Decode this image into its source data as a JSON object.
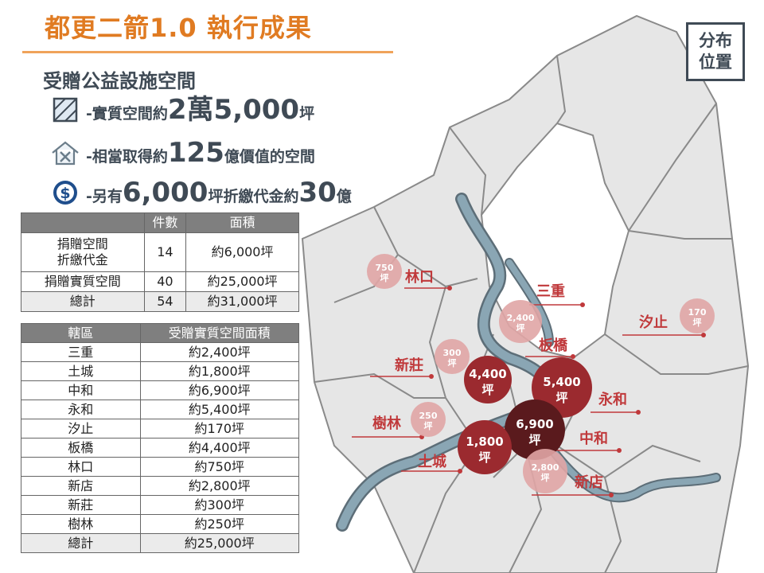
{
  "title": "都更二箭1.0 執行成果",
  "badge": {
    "line1": "分布",
    "line2": "位置"
  },
  "subtitle": "受贈公益設施空間",
  "bullets": [
    {
      "icon": "hatched-square-icon",
      "pre": "-實質空間約",
      "big1": "2萬5,000",
      "post": "坪"
    },
    {
      "icon": "house-tools-icon",
      "pre": "-相當取得約",
      "big1": "125",
      "post": "億價值的空間"
    },
    {
      "icon": "dollar-coin-icon",
      "pre": "-另有",
      "big1": "6,000",
      "mid": "坪折繳代金約",
      "big2": "30",
      "post": "億"
    }
  ],
  "summary_table": {
    "headers": [
      "",
      "件數",
      "面積"
    ],
    "rows": [
      {
        "label": "捐贈空間\n折繳代金",
        "count": "14",
        "area": "約6,000坪"
      },
      {
        "label": "捐贈實質空間",
        "count": "40",
        "area": "約25,000坪"
      },
      {
        "label": "總計",
        "count": "54",
        "area": "約31,000坪"
      }
    ]
  },
  "district_table": {
    "headers": [
      "轄區",
      "受贈實質空間面積"
    ],
    "rows": [
      {
        "district": "三重",
        "area": "約2,400坪"
      },
      {
        "district": "土城",
        "area": "約1,800坪"
      },
      {
        "district": "中和",
        "area": "約6,900坪"
      },
      {
        "district": "永和",
        "area": "約5,400坪"
      },
      {
        "district": "汐止",
        "area": "約170坪"
      },
      {
        "district": "板橋",
        "area": "約4,400坪"
      },
      {
        "district": "林口",
        "area": "約750坪"
      },
      {
        "district": "新店",
        "area": "約2,800坪"
      },
      {
        "district": "新莊",
        "area": "約300坪"
      },
      {
        "district": "樹林",
        "area": "約250坪"
      },
      {
        "district": "總計",
        "area": "約25,000坪"
      }
    ]
  },
  "map_markers": [
    {
      "district": "林口",
      "value": "750",
      "unit": "坪",
      "level": "light"
    },
    {
      "district": "三重",
      "value": "2,400",
      "unit": "坪",
      "level": "light"
    },
    {
      "district": "汐止",
      "value": "170",
      "unit": "坪",
      "level": "light"
    },
    {
      "district": "板橋",
      "value": "4,400",
      "unit": "坪",
      "level": "dark"
    },
    {
      "district": "新莊",
      "value": "300",
      "unit": "坪",
      "level": "light"
    },
    {
      "district": "永和",
      "value": "5,400",
      "unit": "坪",
      "level": "dark"
    },
    {
      "district": "樹林",
      "value": "250",
      "unit": "坪",
      "level": "light"
    },
    {
      "district": "中和",
      "value": "6,900",
      "unit": "坪",
      "level": "darkest"
    },
    {
      "district": "土城",
      "value": "1,800",
      "unit": "坪",
      "level": "dark"
    },
    {
      "district": "新店",
      "value": "2,800",
      "unit": "坪",
      "level": "light"
    }
  ],
  "colors": {
    "title": "#e07b22",
    "text": "#3f4a55",
    "label": "#c0393b",
    "light": "#e0a5a5",
    "dark": "#9b2a2f",
    "darkest": "#5a1a1d",
    "river": "#7895a3",
    "land": "#e6e6e6"
  }
}
